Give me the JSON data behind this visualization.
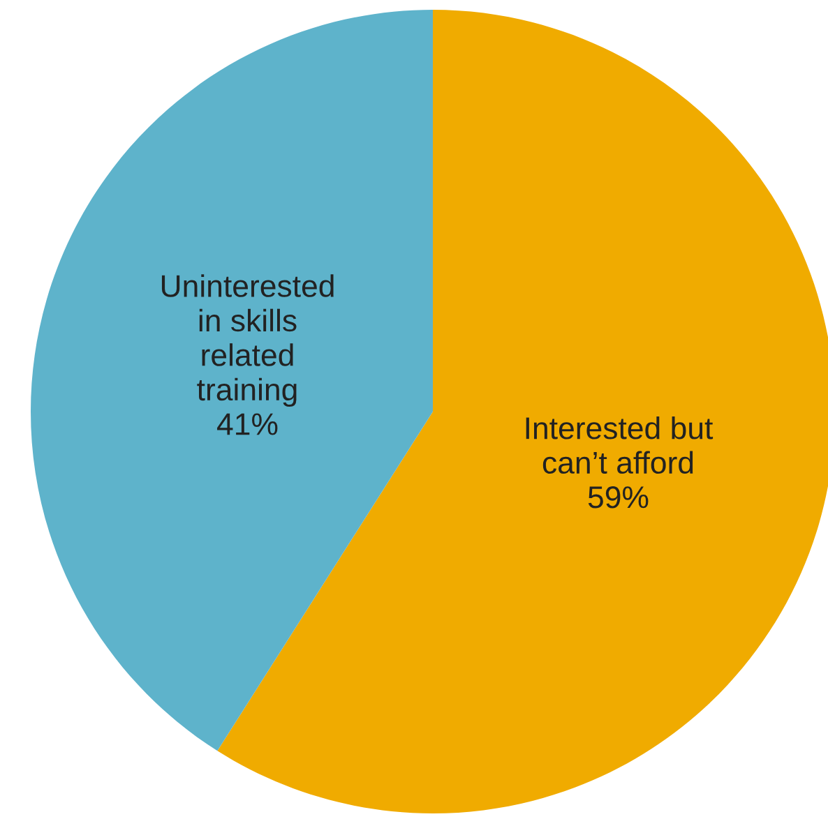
{
  "chart_data": {
    "type": "pie",
    "categories": [
      "Interested but\ncan’t afford",
      "Uninterested\nin skills\nrelated\ntraining"
    ],
    "values": [
      59,
      41
    ],
    "value_labels": [
      "59%",
      "41%"
    ],
    "colors": [
      "#f0ab00",
      "#5eb3cb"
    ]
  }
}
